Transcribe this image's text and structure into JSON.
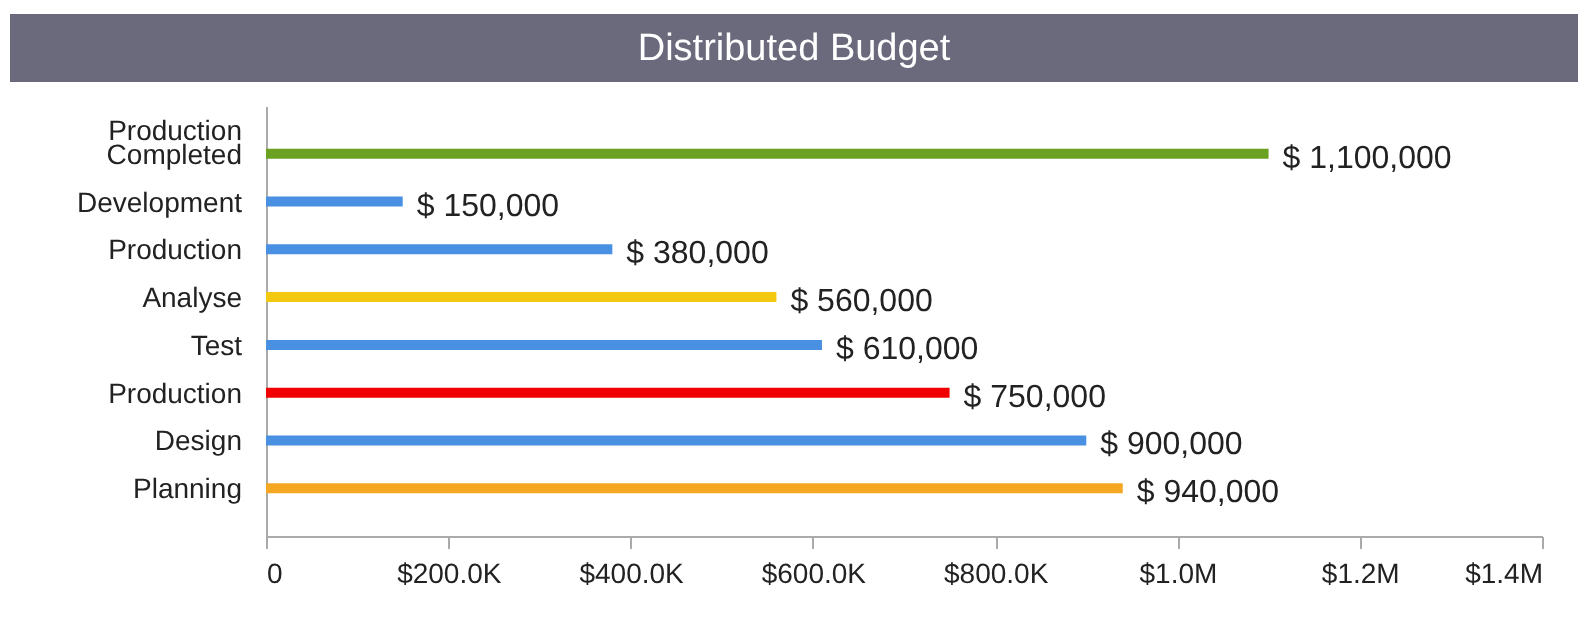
{
  "chart_data": {
    "type": "bar",
    "orientation": "horizontal",
    "title": "Distributed Budget",
    "categories": [
      "Production Completed",
      "Development",
      "Production",
      "Analyse",
      "Test",
      "Production",
      "Design",
      "Planning"
    ],
    "values": [
      1100000,
      150000,
      380000,
      560000,
      610000,
      750000,
      900000,
      940000
    ],
    "colors": [
      "#6aa121",
      "#4a90e2",
      "#4a90e2",
      "#f2c811",
      "#4a90e2",
      "#f00000",
      "#4a90e2",
      "#f5a623"
    ],
    "value_labels": [
      "$ 1,100,000",
      "$ 150,000",
      "$ 380,000",
      "$ 560,000",
      "$ 610,000",
      "$ 750,000",
      "$ 900,000",
      "$ 940,000"
    ],
    "xlim": [
      0,
      1400000
    ],
    "xticks": [
      0,
      {
        "value": 200000,
        "label": "$200.0K"
      },
      {
        "value": 400000,
        "label": "$400.0K"
      },
      {
        "value": 600000,
        "label": "$600.0K"
      },
      {
        "value": 800000,
        "label": "$800.0K"
      },
      {
        "value": 1000000,
        "label": "$1.0M"
      },
      {
        "value": 1200000,
        "label": "$1.2M"
      },
      {
        "value": 1400000,
        "label": "$1.4M"
      }
    ],
    "grid": false,
    "legend": false
  }
}
